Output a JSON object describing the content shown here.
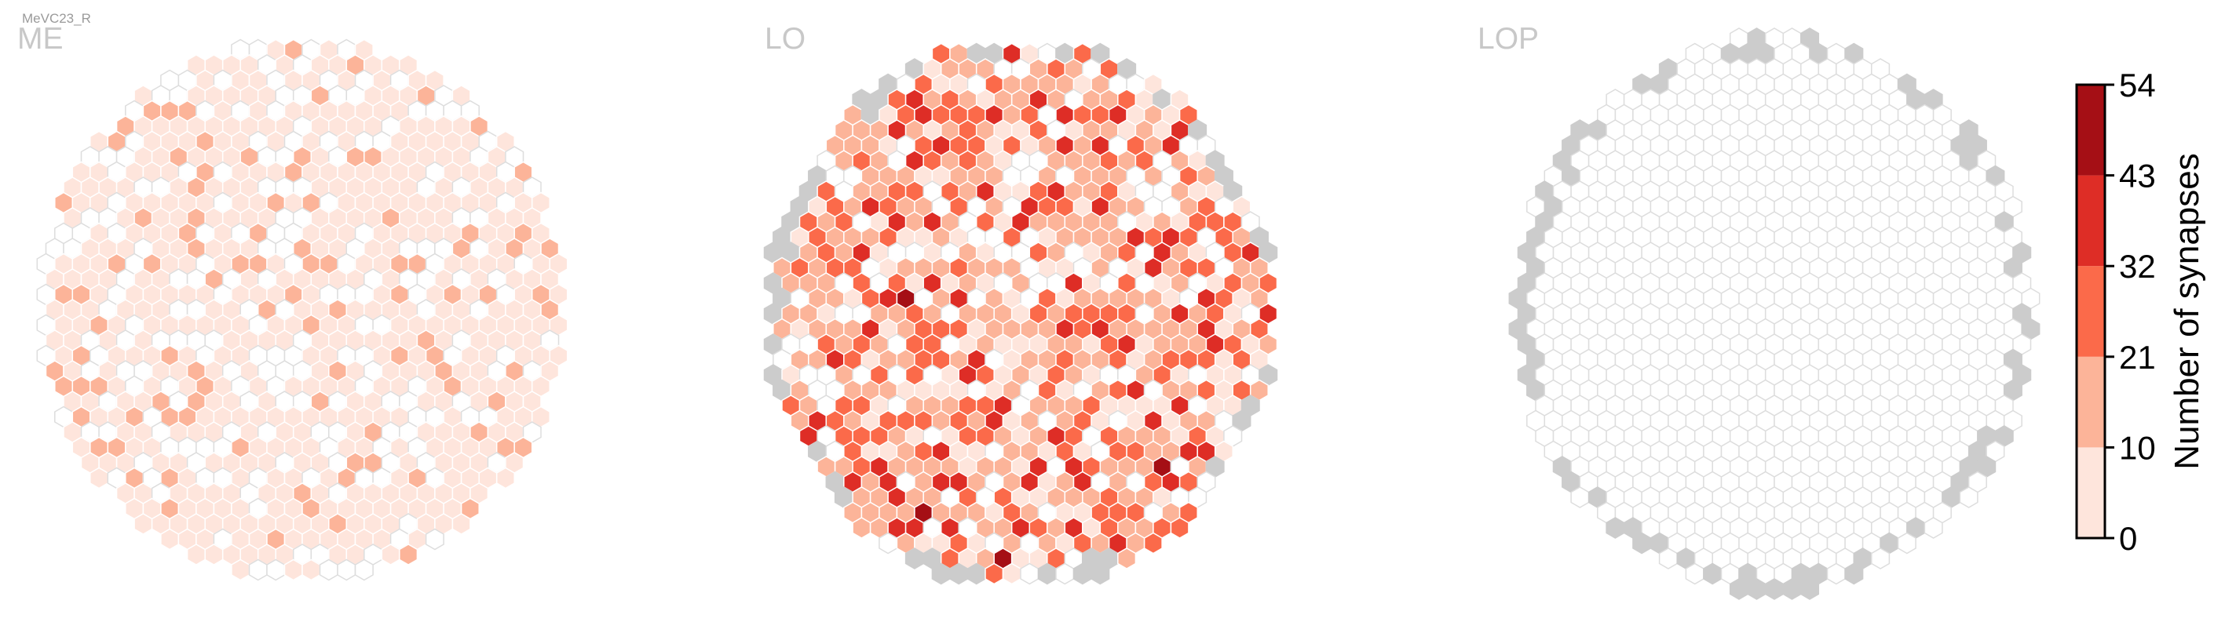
{
  "figure": {
    "title": "MeVC23_R"
  },
  "colors": {
    "bins": [
      "#fee5dc",
      "#fcb499",
      "#fb6a4a",
      "#de2d26",
      "#a50f15"
    ],
    "empty_fill": "#ffffff",
    "empty_stroke": "#dddddd",
    "missing_fill": "#cccccc"
  },
  "panels": [
    {
      "name": "ME",
      "title": "ME"
    },
    {
      "name": "LO",
      "title": "LO"
    },
    {
      "name": "LOP",
      "title": "LOP"
    }
  ],
  "colorbar": {
    "label": "Number of synapses",
    "ticks": [
      "0",
      "10",
      "21",
      "32",
      "43",
      "54"
    ]
  },
  "chart_data": {
    "type": "heatmap",
    "title": "MeVC23_R",
    "legend_placement": "right",
    "value_range": [
      0,
      54
    ],
    "bin_edges": [
      0,
      10,
      21,
      32,
      43,
      54
    ],
    "bin_colors": [
      "#fee5dc",
      "#fcb499",
      "#fb6a4a",
      "#de2d26",
      "#a50f15"
    ],
    "panels": [
      {
        "name": "ME",
        "distribution": "mostly 1-10 synapses per column, scattered 11-21, a few 22-32"
      },
      {
        "name": "LO",
        "distribution": "mostly 11-21 and 22-32 synapses, many 33-43, several 44-54, grey rim columns"
      },
      {
        "name": "LOP",
        "distribution": "all columns empty, grey rim columns"
      }
    ]
  }
}
